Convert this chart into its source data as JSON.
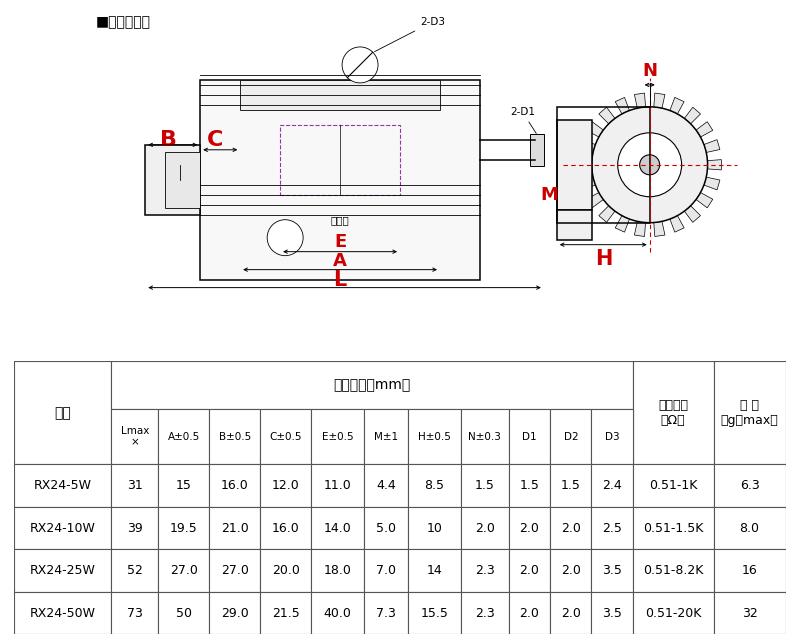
{
  "title_label": "■外形尺寸：",
  "red": "#CC0000",
  "black": "#000000",
  "purple": "#9933AA",
  "fig_bg": "#ffffff",
  "table_border": "#555555",
  "table_data": [
    [
      "RX24-5W",
      "31",
      "15",
      "16.0",
      "12.0",
      "11.0",
      "4.4",
      "8.5",
      "1.5",
      "1.5",
      "1.5",
      "2.4",
      "0.51-1K",
      "6.3"
    ],
    [
      "RX24-10W",
      "39",
      "19.5",
      "21.0",
      "16.0",
      "14.0",
      "5.0",
      "10",
      "2.0",
      "2.0",
      "2.0",
      "2.5",
      "0.51-1.5K",
      "8.0"
    ],
    [
      "RX24-25W",
      "52",
      "27.0",
      "27.0",
      "20.0",
      "18.0",
      "7.0",
      "14",
      "2.3",
      "2.0",
      "2.0",
      "3.5",
      "0.51-8.2K",
      "16"
    ],
    [
      "RX24-50W",
      "73",
      "50",
      "29.0",
      "21.5",
      "40.0",
      "7.3",
      "15.5",
      "2.3",
      "2.0",
      "2.0",
      "3.5",
      "0.51-20K",
      "32"
    ]
  ]
}
